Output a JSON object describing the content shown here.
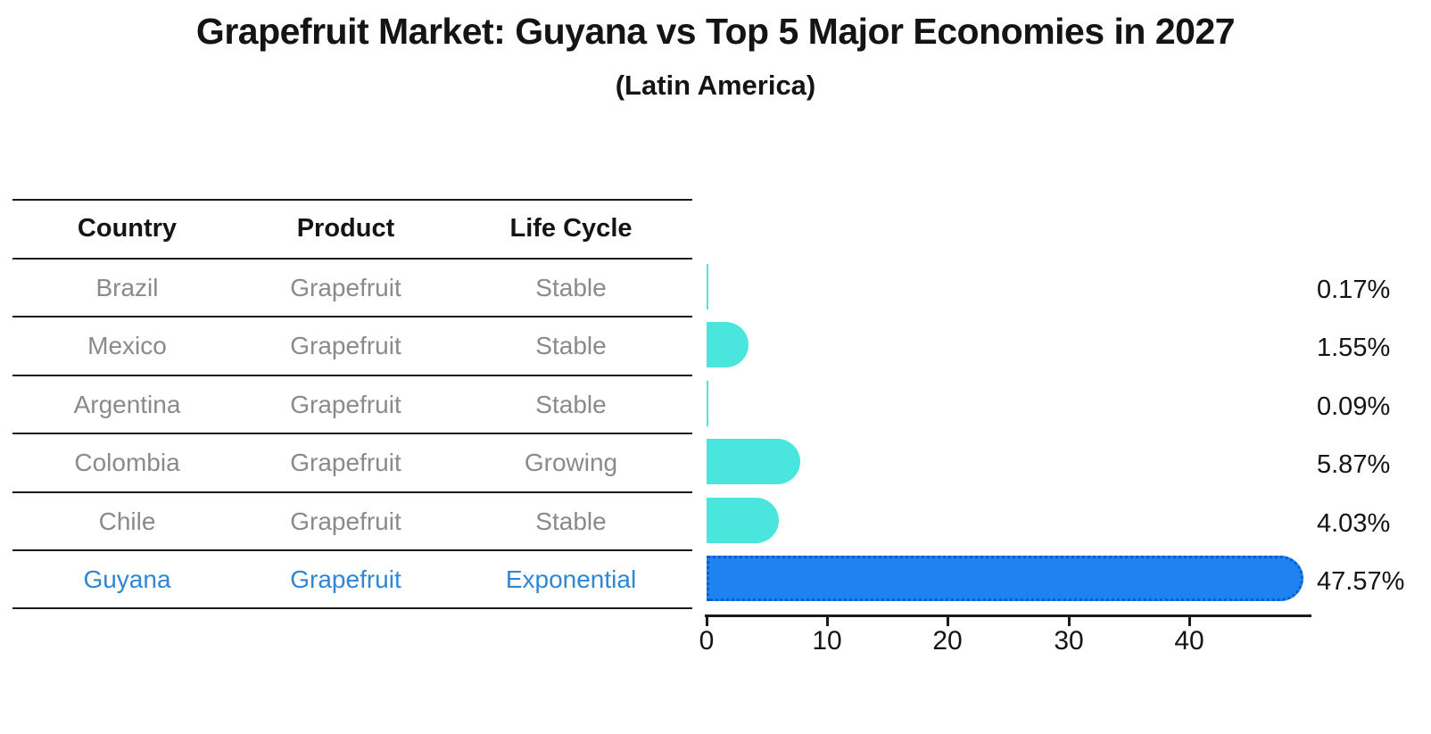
{
  "title": "Grapefruit Market: Guyana vs Top 5 Major Economies in 2027",
  "subtitle": "(Latin America)",
  "table": {
    "headers": {
      "country": "Country",
      "product": "Product",
      "life_cycle": "Life Cycle"
    },
    "rows": [
      {
        "country": "Brazil",
        "product": "Grapefruit",
        "life_cycle": "Stable",
        "share": "0.17%"
      },
      {
        "country": "Mexico",
        "product": "Grapefruit",
        "life_cycle": "Stable",
        "share": "1.55%"
      },
      {
        "country": "Argentina",
        "product": "Grapefruit",
        "life_cycle": "Stable",
        "share": "0.09%"
      },
      {
        "country": "Colombia",
        "product": "Grapefruit",
        "life_cycle": "Growing",
        "share": "5.87%"
      },
      {
        "country": "Chile",
        "product": "Grapefruit",
        "life_cycle": "Stable",
        "share": "4.03%"
      },
      {
        "country": "Guyana",
        "product": "Grapefruit",
        "life_cycle": "Exponential",
        "share": "47.57%"
      }
    ]
  },
  "chart_data": {
    "type": "bar",
    "orientation": "horizontal",
    "title": "Grapefruit Market: Guyana vs Top 5 Major Economies in 2027 (Latin America)",
    "categories": [
      "Brazil",
      "Mexico",
      "Argentina",
      "Colombia",
      "Chile",
      "Guyana"
    ],
    "values": [
      0.17,
      1.55,
      0.09,
      5.87,
      4.03,
      47.57
    ],
    "value_labels": [
      "0.17%",
      "1.55%",
      "0.09%",
      "5.87%",
      "4.03%",
      "47.57%"
    ],
    "x_ticks": [
      "0",
      "10",
      "20",
      "30",
      "40"
    ],
    "xlim": [
      0,
      50
    ],
    "xlabel": "",
    "ylabel": "",
    "grid": false,
    "legend": "none",
    "highlight_index": 5,
    "bar_color": "#4ae6de",
    "highlight_bar_color": "#1e82f0",
    "highlight_bar_edge_color": "#0c5cc9",
    "highlight_text_color": "#2e86d4",
    "muted_text_color": "#8a8a8a"
  }
}
